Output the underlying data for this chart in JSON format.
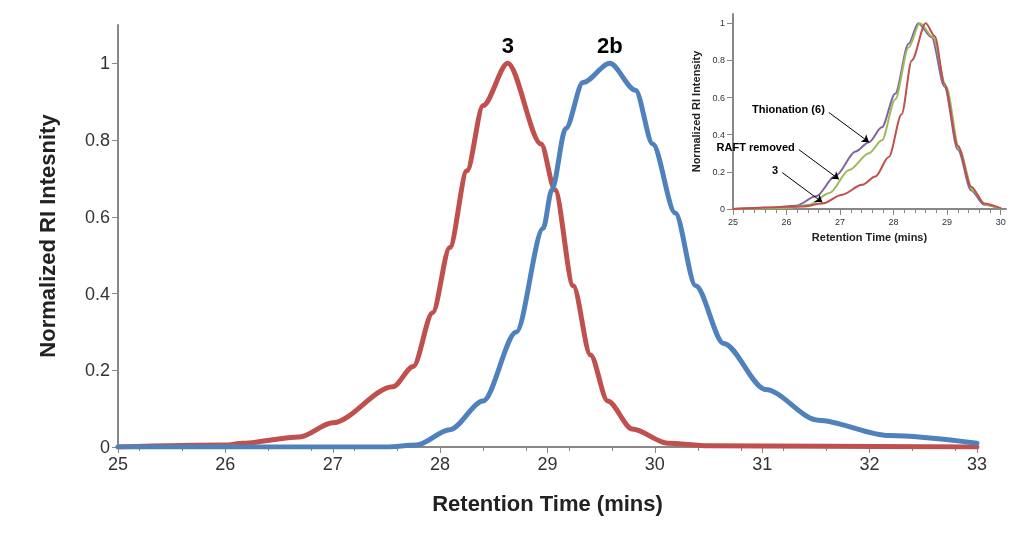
{
  "chart_data": [
    {
      "type": "line",
      "xlabel": "Retention Time (mins)",
      "ylabel": "Normalized RI Intesnity",
      "xlim": [
        25,
        33
      ],
      "xticks": [
        25,
        26,
        27,
        28,
        29,
        30,
        31,
        32,
        33
      ],
      "ylim": [
        0,
        1.1
      ],
      "yticks": [
        0,
        0.2,
        0.4,
        0.6,
        0.8,
        1
      ],
      "grid": false,
      "legend": false,
      "marker": "none",
      "line_style": "solid",
      "series": [
        {
          "name": "3",
          "color": "#c0504d",
          "x": [
            25,
            26,
            26.16,
            26.69,
            27.0,
            27.56,
            27.75,
            27.93,
            28.09,
            28.25,
            28.4,
            28.63,
            28.94,
            29.07,
            29.24,
            29.4,
            29.56,
            29.79,
            30.12,
            30.5,
            33
          ],
          "values": [
            0,
            0.005,
            0.01,
            0.026,
            0.063,
            0.157,
            0.21,
            0.35,
            0.52,
            0.72,
            0.89,
            1,
            0.79,
            0.67,
            0.42,
            0.24,
            0.12,
            0.047,
            0.01,
            0.003,
            0
          ]
        },
        {
          "name": "2b",
          "color": "#4f81bd",
          "x": [
            25,
            27.5,
            27.78,
            28.09,
            28.4,
            28.71,
            28.96,
            29.04,
            29.17,
            29.33,
            29.58,
            29.82,
            29.98,
            30.19,
            30.38,
            30.64,
            31.03,
            31.52,
            32.18,
            33
          ],
          "values": [
            0,
            0,
            0.005,
            0.045,
            0.12,
            0.3,
            0.57,
            0.67,
            0.83,
            0.95,
            1,
            0.93,
            0.79,
            0.61,
            0.42,
            0.27,
            0.15,
            0.07,
            0.03,
            0.01
          ]
        }
      ]
    },
    {
      "type": "line",
      "xlabel": "Retention Time (mins)",
      "ylabel": "Normalized RI Intensity",
      "xlim": [
        25,
        30.1
      ],
      "xticks": [
        25,
        26,
        27,
        28,
        29,
        30
      ],
      "ylim": [
        0,
        1.05
      ],
      "yticks": [
        0,
        0.2,
        0.4,
        0.6,
        0.8,
        1
      ],
      "grid": false,
      "legend": false,
      "marker": "none",
      "line_style": "solid",
      "series": [
        {
          "color": "#8064a2",
          "x": [
            25,
            25.69,
            26.18,
            26.55,
            26.92,
            27.29,
            27.54,
            27.78,
            28.03,
            28.28,
            28.46,
            28.71,
            28.95,
            29.2,
            29.45,
            29.69,
            30
          ],
          "values": [
            0,
            0.005,
            0.018,
            0.068,
            0.18,
            0.31,
            0.36,
            0.44,
            0.62,
            0.89,
            1,
            0.925,
            0.66,
            0.32,
            0.1,
            0.023,
            0.002
          ]
        },
        {
          "color": "#9bbb59",
          "x": [
            25,
            26.0,
            26.43,
            26.8,
            27.17,
            27.54,
            27.78,
            28.03,
            28.28,
            28.49,
            28.74,
            28.98,
            29.23,
            29.48,
            29.72,
            30
          ],
          "values": [
            0,
            0.005,
            0.023,
            0.086,
            0.21,
            0.3,
            0.37,
            0.59,
            0.87,
            1,
            0.925,
            0.66,
            0.32,
            0.1,
            0.023,
            0.002
          ]
        },
        {
          "color": "#c0504d",
          "x": [
            25,
            26.31,
            26.67,
            27.04,
            27.41,
            27.66,
            27.91,
            28.15,
            28.34,
            28.6,
            28.77,
            28.95,
            29.2,
            29.45,
            29.69,
            30
          ],
          "values": [
            0,
            0.014,
            0.03,
            0.077,
            0.13,
            0.175,
            0.28,
            0.51,
            0.8,
            1,
            0.93,
            0.675,
            0.34,
            0.12,
            0.03,
            0.005
          ]
        }
      ],
      "annotations": [
        {
          "text": "Thionation (6)",
          "x": 27.54,
          "y": 0.36
        },
        {
          "text": "RAFT removed",
          "x": 26.98,
          "y": 0.16
        },
        {
          "text": "3",
          "x": 26.67,
          "y": 0.036
        }
      ]
    }
  ]
}
